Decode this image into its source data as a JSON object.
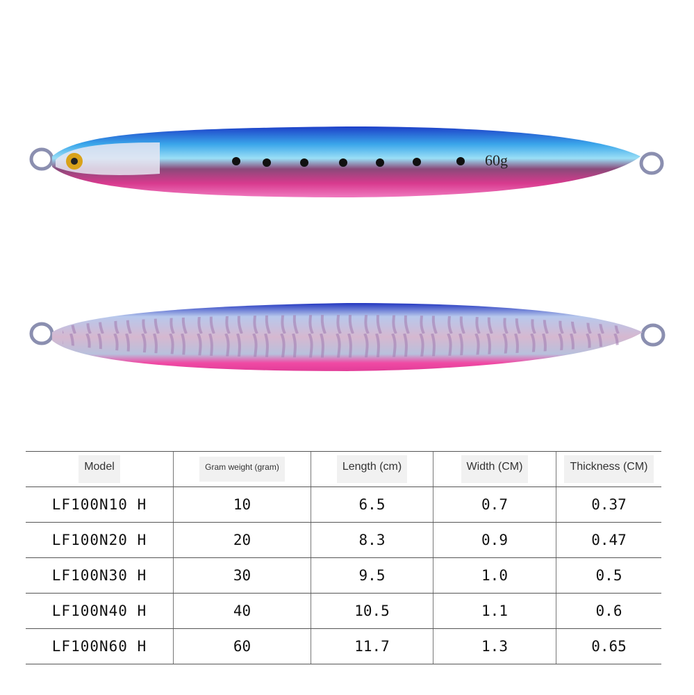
{
  "lures": {
    "top": {
      "marking": "60g",
      "colors": {
        "back": "#2a57d6",
        "belly": "#e2479a",
        "stripe": "#7ed6f2"
      }
    },
    "bottom": {
      "colors": {
        "back": "#2a3fc4",
        "belly": "#ee3f9d",
        "holo": "#c9b8d8"
      }
    }
  },
  "table": {
    "headers": [
      "Model",
      "Gram weight (gram)",
      "Length (cm)",
      "Width (CM)",
      "Thickness (CM)"
    ],
    "rows": [
      [
        "LF100N10 H",
        "10",
        "6.5",
        "0.7",
        "0.37"
      ],
      [
        "LF100N20 H",
        "20",
        "8.3",
        "0.9",
        "0.47"
      ],
      [
        "LF100N30 H",
        "30",
        "9.5",
        "1.0",
        "0.5"
      ],
      [
        "LF100N40 H",
        "40",
        "10.5",
        "1.1",
        "0.6"
      ],
      [
        "LF100N60 H",
        "60",
        "11.7",
        "1.3",
        "0.65"
      ]
    ]
  }
}
